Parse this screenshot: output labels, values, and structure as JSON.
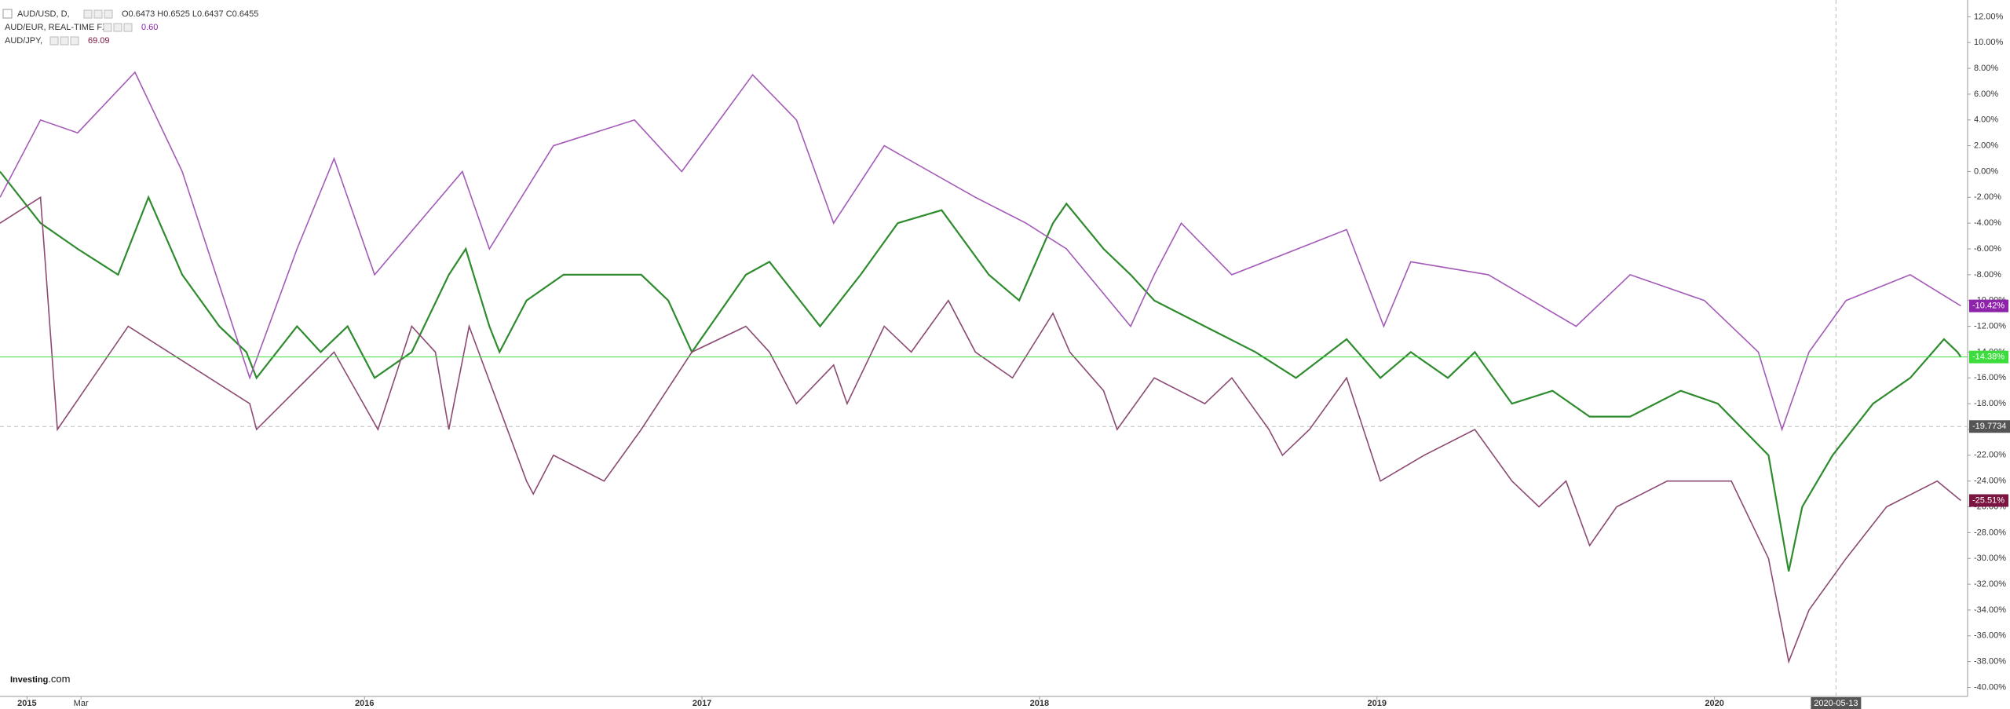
{
  "chart_data": {
    "type": "line",
    "logo": "Investing",
    "logo_suffix": ".com",
    "xlim": [
      2014.92,
      2020.75
    ],
    "xticks": [
      2015,
      {
        "value": 2015.16,
        "label": "Mar"
      },
      2016,
      2017,
      2018,
      2019,
      2020
    ],
    "ylim": [
      -40.7,
      13.3
    ],
    "yticks": [
      {
        "value": 12,
        "label": "12.00%"
      },
      {
        "value": 10,
        "label": "10.00%"
      },
      {
        "value": 8,
        "label": "8.00%"
      },
      {
        "value": 6,
        "label": "6.00%"
      },
      {
        "value": 4,
        "label": "4.00%"
      },
      {
        "value": 2,
        "label": "2.00%"
      },
      {
        "value": 0,
        "label": "0.00%"
      },
      {
        "value": -2,
        "label": "-2.00%"
      },
      {
        "value": -4,
        "label": "-4.00%"
      },
      {
        "value": -6,
        "label": "-6.00%"
      },
      {
        "value": -8,
        "label": "-8.00%"
      },
      {
        "value": -10,
        "label": "-10.00%"
      },
      {
        "value": -12,
        "label": "-12.00%"
      },
      {
        "value": -14,
        "label": "-14.00%"
      },
      {
        "value": -16,
        "label": "-16.00%"
      },
      {
        "value": -18,
        "label": "-18.00%"
      },
      {
        "value": -20,
        "label": "-20.00%"
      },
      {
        "value": -22,
        "label": "-22.00%"
      },
      {
        "value": -24,
        "label": "-24.00%"
      },
      {
        "value": -26,
        "label": "-26.00%"
      },
      {
        "value": -28,
        "label": "-28.00%"
      },
      {
        "value": -30,
        "label": "-30.00%"
      },
      {
        "value": -32,
        "label": "-32.00%"
      },
      {
        "value": -34,
        "label": "-34.00%"
      },
      {
        "value": -36,
        "label": "-36.00%"
      },
      {
        "value": -38,
        "label": "-38.00%"
      },
      {
        "value": -40,
        "label": "-40.00%"
      }
    ],
    "crosshair": {
      "x": {
        "value": 2020.36,
        "label": "2020-05-13"
      },
      "y": -19.7734
    },
    "series": [
      {
        "name": "AUD/USD, D,",
        "info": "O0.6473 H0.6525 L0.6437 C0.6455",
        "color": "#2e8b2e",
        "badge_color": "#3ddc3d",
        "last_label": "-14.38%",
        "x": [
          2014.92,
          2015.04,
          2015.15,
          2015.27,
          2015.36,
          2015.46,
          2015.57,
          2015.65,
          2015.68,
          2015.8,
          2015.87,
          2015.95,
          2016.03,
          2016.14,
          2016.25,
          2016.3,
          2016.37,
          2016.4,
          2016.48,
          2016.59,
          2016.82,
          2016.9,
          2016.97,
          2017.13,
          2017.2,
          2017.35,
          2017.47,
          2017.58,
          2017.71,
          2017.85,
          2017.94,
          2018.04,
          2018.08,
          2018.19,
          2018.27,
          2018.34,
          2018.49,
          2018.64,
          2018.76,
          2018.91,
          2019.01,
          2019.1,
          2019.21,
          2019.29,
          2019.4,
          2019.52,
          2019.63,
          2019.75,
          2019.9,
          2020.01,
          2020.16,
          2020.22,
          2020.26,
          2020.35,
          2020.47,
          2020.58,
          2020.68,
          2020.72,
          2020.73
        ],
        "values": [
          0,
          -4,
          -6,
          -8,
          -2,
          -8,
          -12,
          -14,
          -16,
          -12,
          -14,
          -12,
          -16,
          -14,
          -8,
          -6,
          -12,
          -14,
          -10,
          -8,
          -8,
          -10,
          -14,
          -8,
          -7,
          -12,
          -8,
          -4,
          -3,
          -8,
          -10,
          -4,
          -2.5,
          -6,
          -8,
          -10,
          -12,
          -14,
          -16,
          -13,
          -16,
          -14,
          -16,
          -14,
          -18,
          -17,
          -19,
          -19,
          -17,
          -18,
          -22,
          -31,
          -26,
          -22,
          -18,
          -16,
          -13,
          -14,
          -14.38
        ]
      },
      {
        "name": "AUD/EUR, REAL-TIME FX",
        "info": "0.60",
        "color": "#a45ab8",
        "badge_color": "#8e24aa",
        "last_label": "-10.42%",
        "x": [
          2014.92,
          2015.04,
          2015.15,
          2015.32,
          2015.46,
          2015.66,
          2015.8,
          2015.91,
          2016.03,
          2016.29,
          2016.37,
          2016.56,
          2016.8,
          2016.94,
          2017.15,
          2017.28,
          2017.39,
          2017.54,
          2017.81,
          2017.96,
          2018.08,
          2018.27,
          2018.34,
          2018.42,
          2018.57,
          2018.91,
          2019.02,
          2019.1,
          2019.33,
          2019.59,
          2019.75,
          2019.97,
          2020.13,
          2020.2,
          2020.28,
          2020.39,
          2020.58,
          2020.73
        ],
        "values": [
          -2,
          4,
          3,
          7.7,
          0,
          -16,
          -6,
          1,
          -8,
          0,
          -6,
          2,
          4,
          0,
          7.5,
          4,
          -4,
          2,
          -2,
          -4,
          -6,
          -12,
          -8,
          -4,
          -8,
          -4.5,
          -12,
          -7,
          -8,
          -12,
          -8,
          -10,
          -14,
          -20,
          -14,
          -10,
          -8,
          -10.42
        ]
      },
      {
        "name": "AUD/JPY,",
        "info": "69.09",
        "color": "#8c4a72",
        "badge_color": "#7a1440",
        "last_label": "-25.51%",
        "x": [
          2014.92,
          2015.04,
          2015.09,
          2015.3,
          2015.66,
          2015.68,
          2015.91,
          2016.04,
          2016.14,
          2016.21,
          2016.25,
          2016.31,
          2016.48,
          2016.5,
          2016.56,
          2016.71,
          2016.82,
          2016.97,
          2017.13,
          2017.2,
          2017.28,
          2017.39,
          2017.43,
          2017.54,
          2017.62,
          2017.73,
          2017.81,
          2017.92,
          2018.04,
          2018.09,
          2018.19,
          2018.23,
          2018.34,
          2018.49,
          2018.57,
          2018.68,
          2018.72,
          2018.8,
          2018.91,
          2019.01,
          2019.14,
          2019.29,
          2019.4,
          2019.48,
          2019.56,
          2019.63,
          2019.71,
          2019.86,
          2020.05,
          2020.16,
          2020.22,
          2020.28,
          2020.39,
          2020.51,
          2020.66,
          2020.73
        ],
        "values": [
          -4,
          -2,
          -20,
          -12,
          -18,
          -20,
          -14,
          -20,
          -12,
          -14,
          -20,
          -12,
          -24,
          -25,
          -22,
          -24,
          -20,
          -14,
          -12,
          -14,
          -18,
          -15,
          -18,
          -12,
          -14,
          -10,
          -14,
          -16,
          -11,
          -14,
          -17,
          -20,
          -16,
          -18,
          -16,
          -20,
          -22,
          -20,
          -16,
          -24,
          -22,
          -20,
          -24,
          -26,
          -24,
          -29,
          -26,
          -24,
          -24,
          -30,
          -38,
          -34,
          -30,
          -26,
          -24,
          -25.51
        ]
      }
    ]
  }
}
